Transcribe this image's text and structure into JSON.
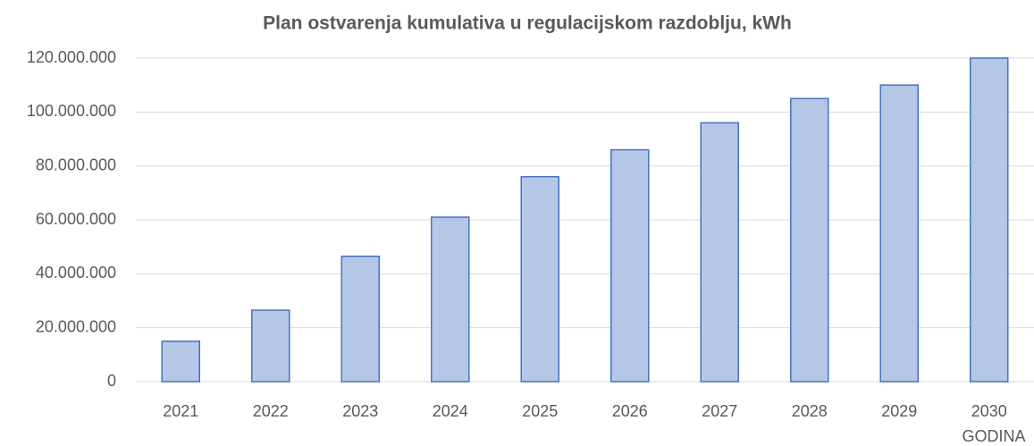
{
  "chart_data": {
    "type": "bar",
    "title": "Plan ostvarenja kumulativa u regulacijskom razdoblju, kWh",
    "x_label": "GODINA",
    "categories": [
      "2021",
      "2022",
      "2023",
      "2024",
      "2025",
      "2026",
      "2027",
      "2028",
      "2029",
      "2030"
    ],
    "values": [
      15000000,
      26500000,
      46500000,
      61000000,
      76000000,
      86000000,
      96000000,
      105000000,
      110000000,
      120000000
    ],
    "color": "#b4c7e7",
    "edge_color": "#4472c4",
    "ylim": [
      0,
      120000000
    ],
    "yticks": [
      0,
      {
        "value": 20000000,
        "label": "20.000.000"
      },
      {
        "value": 40000000,
        "label": "40.000.000"
      },
      {
        "value": 60000000,
        "label": "60.000.000"
      },
      {
        "value": 80000000,
        "label": "80.000.000"
      },
      {
        "value": 100000000,
        "label": "100.000.000"
      },
      {
        "value": 120000000,
        "label": "120.000.000"
      }
    ],
    "grid": true
  }
}
